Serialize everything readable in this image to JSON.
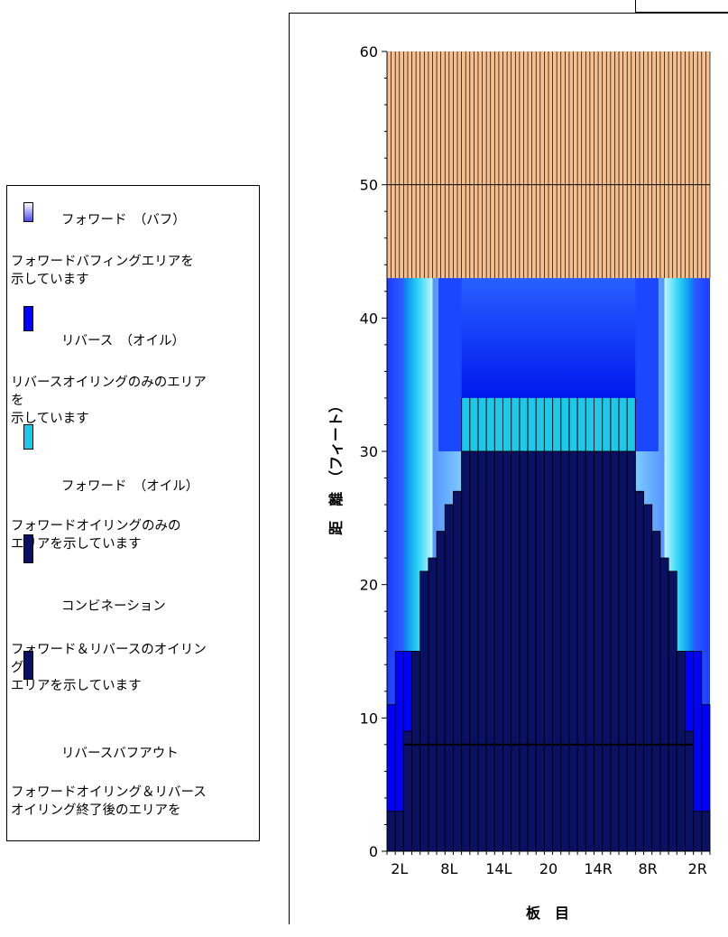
{
  "chart_data": {
    "type": "bar",
    "ylabel": "距　離　（フィート）",
    "xlabel": "板　目",
    "ylim": [
      0,
      60
    ],
    "y_ticks": [
      "0",
      "10",
      "20",
      "30",
      "40",
      "50",
      "60"
    ],
    "x_tick_labels": [
      "2L",
      "8L",
      "14L",
      "20",
      "14R",
      "8R",
      "2R"
    ],
    "boards": 39,
    "zones": {
      "combination_heights": [
        3,
        3,
        9,
        15,
        21,
        22,
        24,
        26,
        27,
        30,
        30,
        30,
        30,
        30,
        30,
        30,
        30,
        30,
        30,
        30,
        30,
        30,
        30,
        30,
        30,
        30,
        30,
        30,
        30,
        30,
        27,
        26,
        24,
        22,
        21,
        15,
        9,
        3,
        3
      ],
      "reverse_oil_strip_heights": [
        11,
        15,
        15,
        15,
        15,
        15,
        15,
        15,
        15
      ],
      "forward_oil_band": [
        30,
        34
      ],
      "oil_pattern_end": 43,
      "buff_band": [
        43,
        60
      ],
      "reference_line": 8
    },
    "colors": {
      "forward_buff": "#f7bf8e",
      "reverse_oil": "#0000ff",
      "forward_oil": "#1ec8e8",
      "combination": "#0a1064",
      "background_oil_light": "#e8ffff"
    }
  },
  "legend": {
    "items": [
      {
        "title": "フォワード　（バフ）",
        "desc": "フォワードバフィングエリアを\n示しています"
      },
      {
        "title": "リバース　（オイル）",
        "desc": "リバースオイリングのみのエリア\nを\n示しています"
      },
      {
        "title": "フォワード　（オイル）",
        "desc": "フォワードオイリングのみの\nエリアを示しています"
      },
      {
        "title": "コンビネーション",
        "desc": "フォワード＆リバースのオイリン\nグ\nエリアを示しています"
      },
      {
        "title": "リバースバフアウト",
        "desc": "フォワードオイリング＆リバース\nオイリング終了後のエリアを"
      }
    ]
  }
}
